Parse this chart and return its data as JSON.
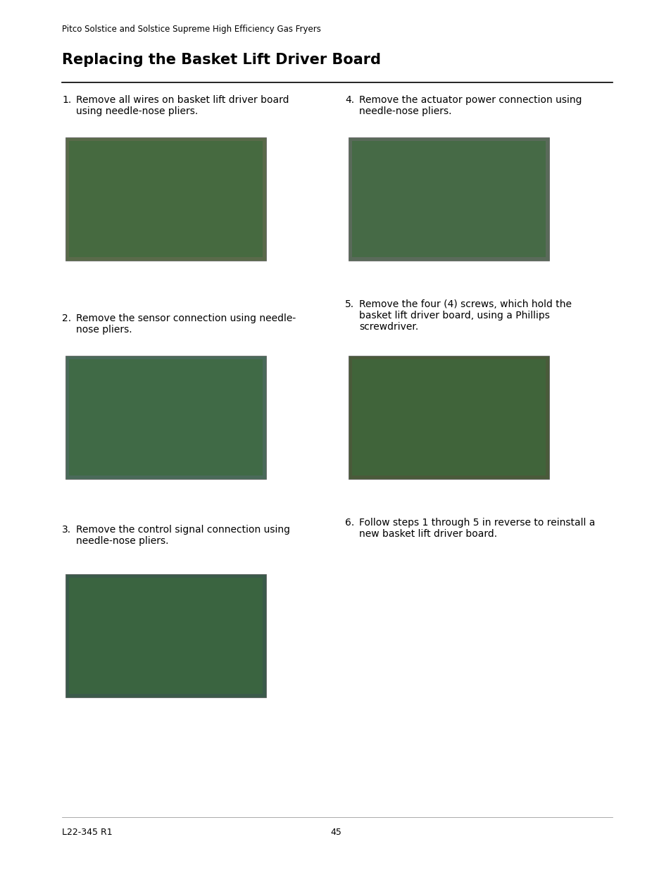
{
  "header_text": "Pitco Solstice and Solstice Supreme High Efficiency Gas Fryers",
  "title": "Replacing the Basket Lift Driver Board",
  "footer_left": "L22-345 R1",
  "footer_center": "45",
  "steps": [
    {
      "number": "1.",
      "text": "Remove all wires on basket lift driver board\nusing needle-nose pliers.",
      "col": 0
    },
    {
      "number": "2.",
      "text": "Remove the sensor connection using needle-\nnose pliers.",
      "col": 0
    },
    {
      "number": "3.",
      "text": "Remove the control signal connection using\nneedle-nose pliers.",
      "col": 0
    },
    {
      "number": "4.",
      "text": "Remove the actuator power connection using\nneedle-nose pliers.",
      "col": 1
    },
    {
      "number": "5.",
      "text": "Remove the four (4) screws, which hold the\nbasket lift driver board, using a Phillips\nscrewdriver.",
      "col": 1
    },
    {
      "number": "6.",
      "text": "Follow steps 1 through 5 in reverse to reinstall a\nnew basket lift driver board.",
      "col": 1
    }
  ],
  "bg_color": "#ffffff",
  "text_color": "#000000",
  "header_fontsize": 8.5,
  "title_fontsize": 15,
  "step_fontsize": 10,
  "footer_fontsize": 9,
  "image_bg_colors": [
    "#7a8a6a",
    "#8a9a7a",
    "#6a7a5a",
    "#8a9a7a",
    "#9a8a6a",
    "#6a8a7a"
  ]
}
